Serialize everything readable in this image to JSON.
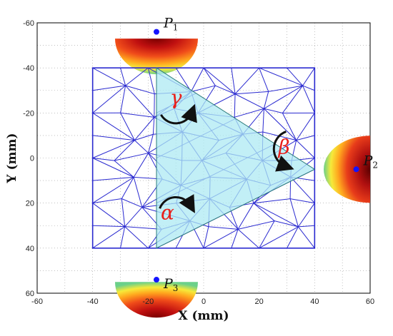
{
  "chart_data": {
    "type": "scatter",
    "xlabel": "X (mm)",
    "ylabel": "Y (mm)",
    "xlim": [
      -60,
      60
    ],
    "ylim": [
      -60,
      60
    ],
    "y_inverted": true,
    "grid": true,
    "xticks": [
      "-60",
      "-40",
      "-20",
      "0",
      "20",
      "40",
      "60"
    ],
    "yticks": [
      "-60",
      "-40",
      "-20",
      "0",
      "20",
      "40",
      "60"
    ],
    "mesh_region": {
      "x": [
        -40,
        40
      ],
      "y": [
        -40,
        40
      ]
    },
    "triangle": [
      [
        -17,
        -40
      ],
      [
        40,
        5
      ],
      [
        -17,
        40
      ]
    ],
    "points": [
      {
        "label": "P",
        "sub": "1",
        "x": -17,
        "y": -56
      },
      {
        "label": "P",
        "sub": "2",
        "x": 55,
        "y": 5
      },
      {
        "label": "P",
        "sub": "3",
        "x": -17,
        "y": 54
      }
    ],
    "angles": [
      {
        "symbol": "α",
        "x": -13,
        "y": 24
      },
      {
        "symbol": "β",
        "x": 29,
        "y": -5
      },
      {
        "symbol": "γ",
        "x": -10,
        "y": -27
      }
    ],
    "colors": {
      "mesh": "#2a2ad0",
      "triangle_fill": "#aee9f3",
      "point": "#1414ff",
      "angle_text": "#e8201c",
      "arrow": "#111111"
    }
  }
}
